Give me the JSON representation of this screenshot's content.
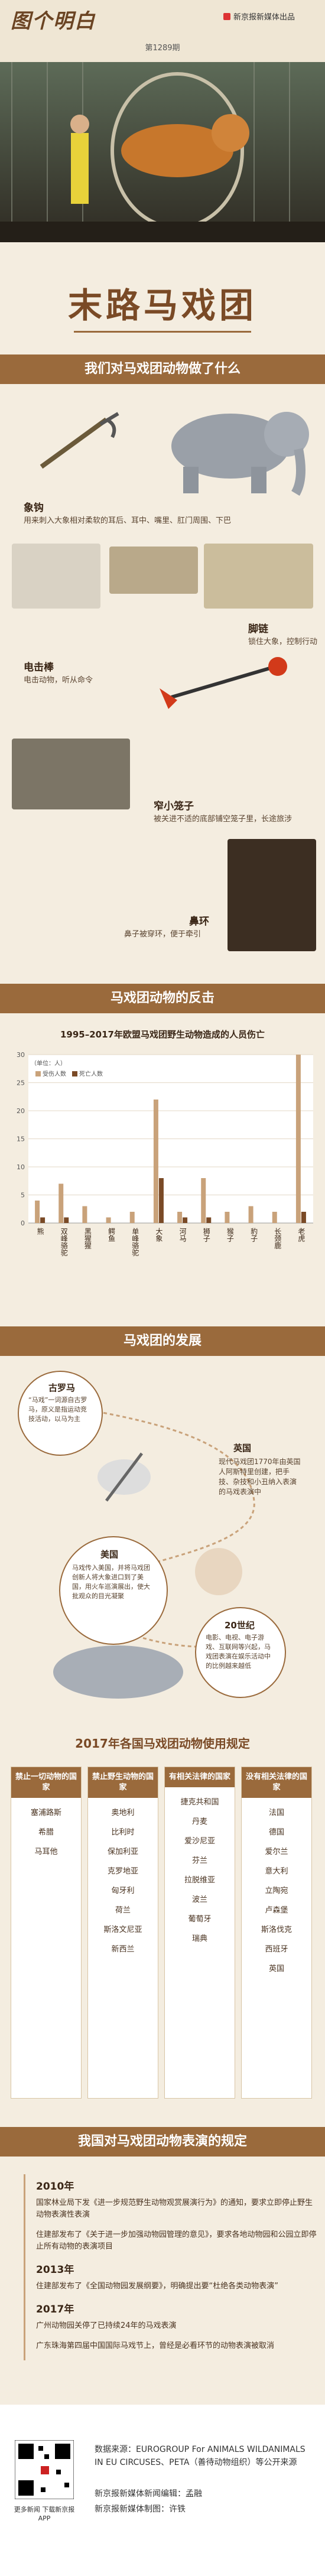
{
  "header": {
    "logo": "图个明白",
    "issue": "第1289期",
    "publisher": "新京报新媒体出品",
    "title": "末路马戏团"
  },
  "tools": {
    "heading": "我们对马戏团动物做了什么",
    "items": [
      {
        "name": "象钩",
        "desc": "用来刺入大象相对柔软的耳后、耳中、嘴里、肛门周围、下巴"
      },
      {
        "name": "脚链",
        "desc": "锁住大象，控制行动"
      },
      {
        "name": "电击棒",
        "desc": "电击动物，听从命令"
      },
      {
        "name": "窄小笼子",
        "desc": "被关进不适的底部铺空笼子里，长途旅涉"
      },
      {
        "name": "鼻环",
        "desc": "鼻子被穿环，便于牵引"
      }
    ]
  },
  "chart_data": {
    "type": "bar",
    "heading": "马戏团动物的反击",
    "title": "1995–2017年欧盟马戏团野生动物造成的人员伤亡",
    "unit": "（单位：人）",
    "categories": [
      "熊",
      "双峰骆驼",
      "黑猩猩",
      "鳄鱼",
      "单峰骆驼",
      "大象",
      "河马",
      "狮子",
      "猴子",
      "豹子",
      "长颈鹿",
      "老虎"
    ],
    "series": [
      {
        "name": "受伤人数",
        "color": "#c9a27a",
        "values": [
          4,
          7,
          3,
          1,
          2,
          22,
          2,
          8,
          2,
          3,
          2,
          30
        ]
      },
      {
        "name": "死亡人数",
        "color": "#7a4a26",
        "values": [
          1,
          1,
          0,
          0,
          0,
          8,
          1,
          1,
          0,
          0,
          0,
          2
        ]
      }
    ],
    "ylim": [
      0,
      30
    ],
    "yticks": [
      0,
      5,
      10,
      15,
      20,
      25,
      30
    ],
    "grid": true
  },
  "history": {
    "heading": "马戏团的发展",
    "events": [
      {
        "era": "古罗马",
        "text": "“马戏”一词源自古罗马，原义是指运动竞技活动，以马为主"
      },
      {
        "era": "英国",
        "text": "现代马戏团1770年由英国人阿斯特里创建，把手技、杂技和小丑纳入表演的马戏表演中"
      },
      {
        "era": "美国",
        "text": "马戏传入美国，并将马戏团创新人将大象进口到了美国，用火车巡演展出，使大批观众的目光凝聚"
      },
      {
        "era": "20世纪",
        "text": "电影、电视、电子游戏、互联网等兴起，马戏团表演在娱乐活动中的比例越来越低"
      }
    ]
  },
  "rules": {
    "title": "2017年各国马戏团动物使用规定",
    "columns": [
      {
        "header": "禁止一切动物的国家",
        "countries": [
          "塞浦路斯",
          "希腊",
          "马耳他"
        ]
      },
      {
        "header": "禁止野生动物的国家",
        "countries": [
          "奥地利",
          "比利时",
          "保加利亚",
          "克罗地亚",
          "匈牙利",
          "荷兰",
          "斯洛文尼亚",
          "新西兰"
        ]
      },
      {
        "header": "有相关法律的国家",
        "countries": [
          "捷克共和国",
          "丹麦",
          "爱沙尼亚",
          "芬兰",
          "拉脱维亚",
          "波兰",
          "葡萄牙",
          "瑞典"
        ]
      },
      {
        "header": "没有相关法律的国家",
        "countries": [
          "法国",
          "德国",
          "爱尔兰",
          "意大利",
          "立陶宛",
          "卢森堡",
          "斯洛伐克",
          "西班牙",
          "英国"
        ]
      }
    ]
  },
  "china": {
    "heading": "我国对马戏团动物表演的规定",
    "years": [
      {
        "year": "2010年",
        "items": [
          "国家林业局下发《进一步规范野生动物观赏展演行为》的通知，要求立即停止野生动物表演性表演",
          "住建部发布了《关于进一步加强动物园管理的意见》，要求各地动物园和公园立即停止所有动物的表演项目"
        ]
      },
      {
        "year": "2013年",
        "items": [
          "住建部发布了《全国动物园发展纲要》，明确提出要“杜绝各类动物表演”"
        ]
      },
      {
        "year": "2017年",
        "items": [
          "广州动物园关停了已持续24年的马戏表演",
          "广东珠海第四届中国国际马戏节上，曾经是必看环节的动物表演被取消"
        ]
      }
    ]
  },
  "footer": {
    "app": "更多新闻 下载新京报APP",
    "source": "数据来源：EUROGROUP For ANIMALS WILDANIMALS IN EU CIRCUSES、PETA（善待动物组织）等公开来源",
    "editor": "新京报新媒体新闻编辑：孟融",
    "designer": "新京报新媒体制图：许铁"
  }
}
